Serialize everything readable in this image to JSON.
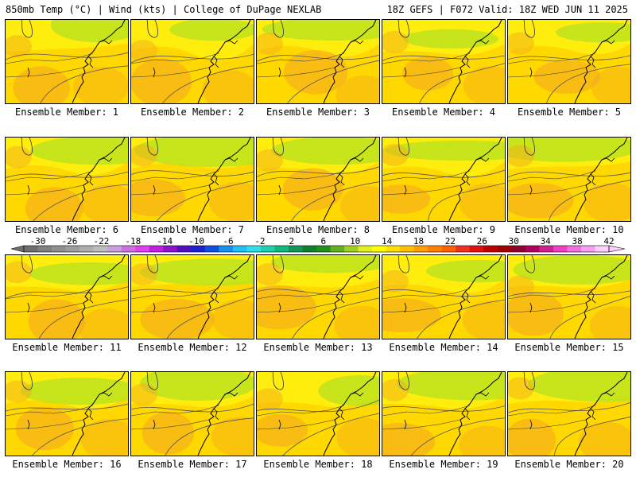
{
  "header": {
    "left": "850mb Temp (°C) | Wind (kts) | College of DuPage NEXLAB",
    "right": "18Z GEFS | F072 Valid: 18Z WED JUN 11 2025"
  },
  "members": [
    {
      "label": "Ensemble Member: 1"
    },
    {
      "label": "Ensemble Member: 2"
    },
    {
      "label": "Ensemble Member: 3"
    },
    {
      "label": "Ensemble Member: 4"
    },
    {
      "label": "Ensemble Member: 5"
    },
    {
      "label": "Ensemble Member: 6"
    },
    {
      "label": "Ensemble Member: 7"
    },
    {
      "label": "Ensemble Member: 8"
    },
    {
      "label": "Ensemble Member: 9"
    },
    {
      "label": "Ensemble Member: 10"
    },
    {
      "label": "Ensemble Member: 11"
    },
    {
      "label": "Ensemble Member: 12"
    },
    {
      "label": "Ensemble Member: 13"
    },
    {
      "label": "Ensemble Member: 14"
    },
    {
      "label": "Ensemble Member: 15"
    },
    {
      "label": "Ensemble Member: 16"
    },
    {
      "label": "Ensemble Member: 17"
    },
    {
      "label": "Ensemble Member: 18"
    },
    {
      "label": "Ensemble Member: 19"
    },
    {
      "label": "Ensemble Member: 20"
    }
  ],
  "colorbar": {
    "tick_labels": [
      "-30",
      "-26",
      "-22",
      "-18",
      "-14",
      "-10",
      "-6",
      "-2",
      "2",
      "6",
      "10",
      "14",
      "18",
      "22",
      "26",
      "30",
      "34",
      "38",
      "42"
    ],
    "colors": [
      "#6e6e6e",
      "#808080",
      "#8f8f8f",
      "#9e9e9e",
      "#adadad",
      "#bdbdbd",
      "#c9a0dc",
      "#d070e0",
      "#e040f0",
      "#c020e0",
      "#9010d0",
      "#5010c0",
      "#2020d0",
      "#1050e0",
      "#1890f0",
      "#20c0f8",
      "#30e0e8",
      "#20d0b0",
      "#10b880",
      "#109858",
      "#108030",
      "#209020",
      "#60b020",
      "#a0d020",
      "#e0f020",
      "#ffff00",
      "#ffe000",
      "#ffc000",
      "#ffa000",
      "#ff8000",
      "#ff6000",
      "#f03020",
      "#e01010",
      "#c00000",
      "#a00000",
      "#900030",
      "#b00060",
      "#d02090",
      "#f040c0",
      "#f070e0",
      "#f8a0f0",
      "#ffd0ff"
    ]
  },
  "colors": {
    "yellow": "#ffd800",
    "light_yellow": "#ffff1a",
    "orange": "#f5ad1c",
    "yellow_green": "#bde31c"
  }
}
